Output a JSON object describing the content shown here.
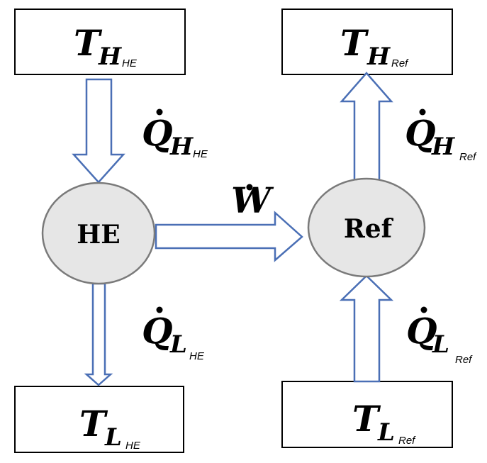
{
  "nodes": {
    "he": {
      "label": "HE"
    },
    "ref": {
      "label": "Ref"
    }
  },
  "reservoirs": {
    "t_h_he": {
      "symbol": "T",
      "sub": "H",
      "subsub": "HE"
    },
    "t_h_ref": {
      "symbol": "T",
      "sub": "H",
      "subsub": "Ref"
    },
    "t_l_he": {
      "symbol": "T",
      "sub": "L",
      "subsub": "HE"
    },
    "t_l_ref": {
      "symbol": "T",
      "sub": "L",
      "subsub": "Ref"
    }
  },
  "flows": {
    "q_h_he": {
      "symbol": "Q",
      "sub": "H",
      "subsub": "HE"
    },
    "q_h_ref": {
      "symbol": "Q",
      "sub": "H",
      "subsub": "Ref"
    },
    "q_l_he": {
      "symbol": "Q",
      "sub": "L",
      "subsub": "HE"
    },
    "q_l_ref": {
      "symbol": "Q",
      "sub": "L",
      "subsub": "Ref"
    },
    "work": {
      "symbol": "W"
    }
  },
  "colors": {
    "arrow_stroke": "#4a6fb5",
    "node_fill": "#e6e6e6",
    "node_stroke": "#7a7a7a",
    "box_stroke": "#000000"
  }
}
